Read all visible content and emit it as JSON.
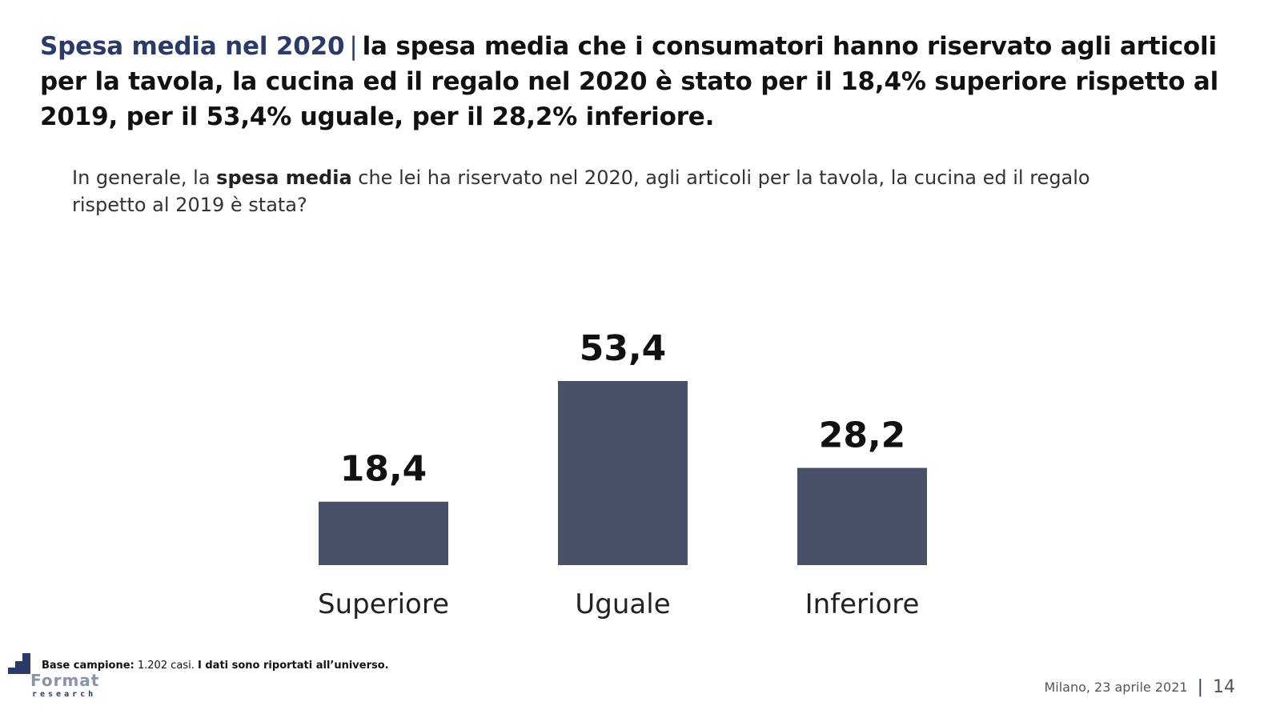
{
  "headline": {
    "accent": "Spesa media nel 2020",
    "separator": "|",
    "rest": "la spesa media che i consumatori hanno riservato agli articoli per la tavola, la cucina ed il regalo nel 2020 è stato per il 18,4% superiore rispetto al 2019, per il 53,4% uguale, per il 28,2% inferiore."
  },
  "question": {
    "before": "In generale, la ",
    "bold": "spesa media",
    "after": " che lei ha riservato nel 2020, agli articoli per la tavola, la cucina ed il regalo rispetto al 2019 è stata?"
  },
  "chart_data": {
    "type": "bar",
    "categories": [
      "Superiore",
      "Uguale",
      "Inferiore"
    ],
    "values": [
      18.4,
      53.4,
      28.2
    ],
    "value_labels": [
      "18,4",
      "53,4",
      "28,2"
    ],
    "ylim": [
      0,
      53.4
    ],
    "bar_color": "#475268",
    "grid": false
  },
  "footer": {
    "note_bold_1": "Base campione:",
    "note_regular": " 1.202 casi. ",
    "note_bold_2": "I dati sono riportati all’universo.",
    "logo_name": "Format",
    "logo_sub": "research",
    "date": "Milano, 23 aprile 2021",
    "separator": "|",
    "page": "14"
  },
  "colors": {
    "accent": "#2b3a67",
    "bar": "#475268"
  }
}
